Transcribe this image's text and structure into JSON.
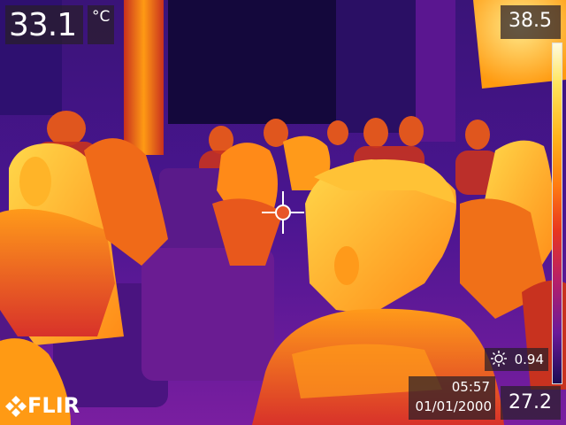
{
  "spot": {
    "value": "33.1",
    "unit": "°C"
  },
  "scale": {
    "max": "38.5",
    "min": "27.2"
  },
  "emissivity": {
    "icon": "sun-emissivity-icon",
    "value": "0.94"
  },
  "datetime": {
    "time": "05:57",
    "date": "01/01/2000"
  },
  "brand": {
    "logo": "FLIR"
  },
  "palette": {
    "hot": "#fff4b0",
    "warm": "#ffa51a",
    "mid": "#e8361f",
    "cool": "#6b1a9a",
    "cold": "#1b0c54",
    "spot_marker": "#e8552a"
  }
}
